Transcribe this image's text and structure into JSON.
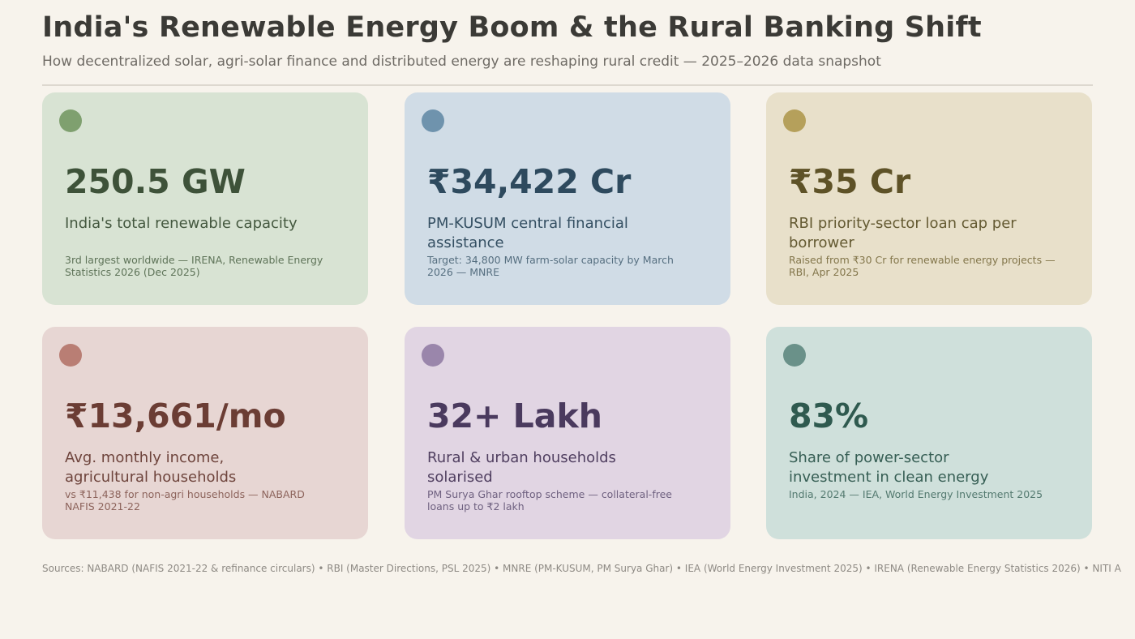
{
  "header": {
    "title": "India's Renewable Energy Boom & the Rural Banking Shift",
    "subtitle": "How decentralized solar, agri-solar finance and distributed energy are reshaping rural credit — 2025–2026 data snapshot"
  },
  "cards": [
    {
      "stat": "250.5 GW",
      "label": "India's total renewable capacity",
      "note": "3rd largest worldwide — IRENA, Renewable Energy Statistics 2026 (Dec 2025)",
      "colors": {
        "bg": "#d8e3d3",
        "dot": "#7fa06f",
        "stat": "#3e5239",
        "label": "#44583f",
        "note": "#5e7358"
      }
    },
    {
      "stat": "₹34,422 Cr",
      "label": "PM-KUSUM central financial assistance",
      "note": "Target: 34,800 MW farm-solar capacity by March 2026 — MNRE",
      "colors": {
        "bg": "#d0dce6",
        "dot": "#6f93ad",
        "stat": "#2e4a5e",
        "label": "#344f62",
        "note": "#566f80"
      }
    },
    {
      "stat": "₹35 Cr",
      "label": "RBI priority-sector loan cap per borrower",
      "note": "Raised from ₹30 Cr for renewable energy projects — RBI, Apr 2025",
      "colors": {
        "bg": "#e8e0ca",
        "dot": "#b5a05b",
        "stat": "#5e5227",
        "label": "#645a32",
        "note": "#83764b"
      }
    },
    {
      "stat": "₹13,661/mo",
      "label": "Avg. monthly income, agricultural households",
      "note": "vs ₹11,438 for non-agri households — NABARD NAFIS 2021-22",
      "colors": {
        "bg": "#e7d6d3",
        "dot": "#b97e74",
        "stat": "#6b3d34",
        "label": "#6e443c",
        "note": "#8d645c"
      }
    },
    {
      "stat": "32+ Lakh",
      "label": "Rural & urban households solarised",
      "note": "PM Surya Ghar rooftop scheme — collateral-free loans up to ₹2 lakh",
      "colors": {
        "bg": "#e1d5e3",
        "dot": "#9a86ab",
        "stat": "#4a3a5e",
        "label": "#503f60",
        "note": "#6f6180"
      }
    },
    {
      "stat": "83%",
      "label": "Share of power-sector investment in clean energy",
      "note": "India, 2024 — IEA, World Energy Investment 2025",
      "colors": {
        "bg": "#cfe0db",
        "dot": "#6a9189",
        "stat": "#2f5a4f",
        "label": "#365e54",
        "note": "#547a70"
      }
    }
  ],
  "footer": {
    "sources": "Sources: NABARD (NAFIS 2021-22 & refinance circulars) • RBI (Master Directions, PSL 2025) • MNRE (PM-KUSUM, PM Surya Ghar) • IEA (World Energy Investment 2025) • IRENA (Renewable Energy Statistics 2026) • NITI A"
  }
}
